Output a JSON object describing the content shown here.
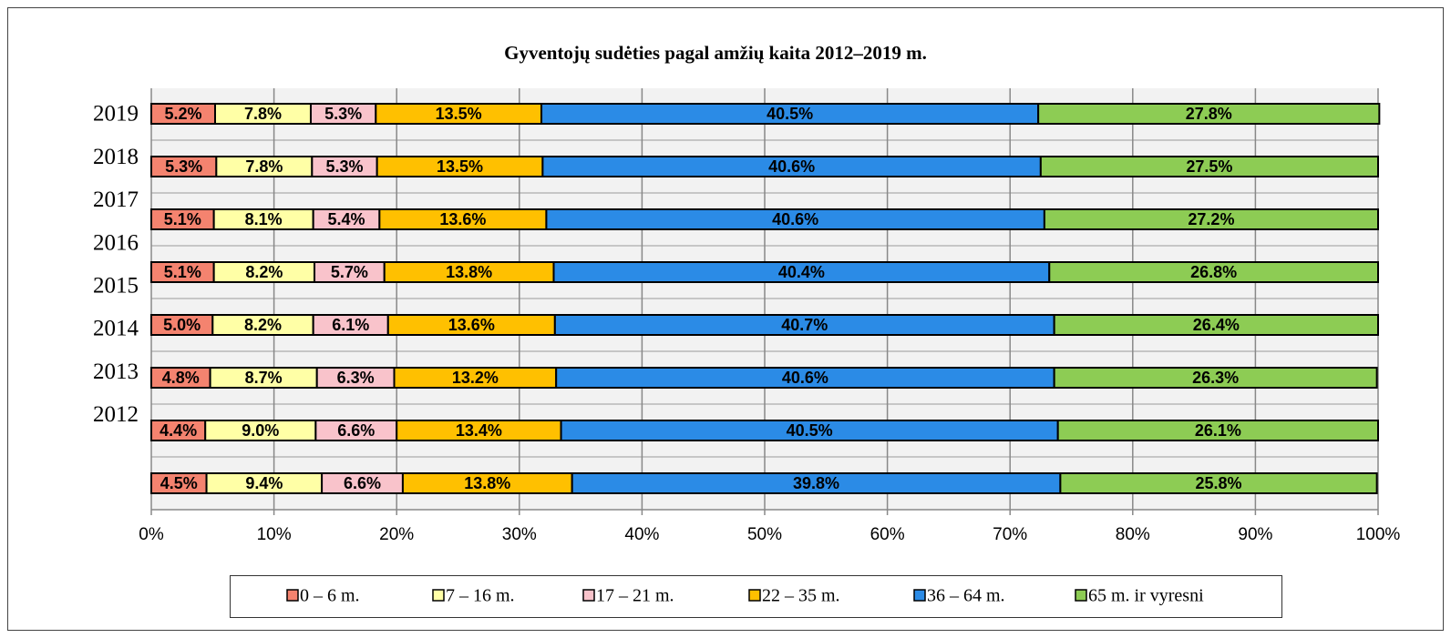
{
  "chart_data": {
    "type": "stacked_barh",
    "title": "Gyventojų sudėties pagal amžių kaita 2012–2019  m.",
    "categories": [
      "2019",
      "2018",
      "2017",
      "2016",
      "2015",
      "2014",
      "2013",
      "2012"
    ],
    "series": [
      {
        "name": "0 – 6 m.",
        "color": "#f4836f",
        "values": [
          5.2,
          5.3,
          5.1,
          5.1,
          5.0,
          4.8,
          4.4,
          4.5
        ],
        "value_labels": [
          "5.2%",
          "5.3%",
          "5.1%",
          "5.1%",
          "5.0%",
          "4.8%",
          "4.4%",
          "4.5%"
        ]
      },
      {
        "name": "7 – 16 m.",
        "color": "#ffffa6",
        "values": [
          7.8,
          7.8,
          8.1,
          8.2,
          8.2,
          8.7,
          9.0,
          9.4
        ],
        "value_labels": [
          "7.8%",
          "7.8%",
          "8.1%",
          "8.2%",
          "8.2%",
          "8.7%",
          "9.0%",
          "9.4%"
        ]
      },
      {
        "name": "17 – 21 m.",
        "color": "#f9c3cb",
        "values": [
          5.3,
          5.3,
          5.4,
          5.7,
          6.1,
          6.3,
          6.6,
          6.6
        ],
        "value_labels": [
          "5.3%",
          "5.3%",
          "5.4%",
          "5.7%",
          "6.1%",
          "6.3%",
          "6.6%",
          "6.6%"
        ]
      },
      {
        "name": "22 – 35 m.",
        "color": "#ffc000",
        "values": [
          13.5,
          13.5,
          13.6,
          13.8,
          13.6,
          13.2,
          13.4,
          13.8
        ],
        "value_labels": [
          "13.5%",
          "13.5%",
          "13.6%",
          "13.8%",
          "13.6%",
          "13.2%",
          "13.4%",
          "13.8%"
        ]
      },
      {
        "name": "36 – 64 m.",
        "color": "#2b8be6",
        "values": [
          40.5,
          40.6,
          40.6,
          40.4,
          40.7,
          40.6,
          40.5,
          39.8
        ],
        "value_labels": [
          "40.5%",
          "40.6%",
          "40.6%",
          "40.4%",
          "40.7%",
          "40.6%",
          "40.5%",
          "39.8%"
        ]
      },
      {
        "name": "65 m. ir vyresni",
        "color": "#8dcc54",
        "values": [
          27.8,
          27.5,
          27.2,
          26.8,
          26.4,
          26.3,
          26.1,
          25.8
        ],
        "value_labels": [
          "27.8%",
          "27.5%",
          "27.2%",
          "26.8%",
          "26.4%",
          "26.3%",
          "26.1%",
          "25.8%"
        ]
      }
    ],
    "xlim": [
      0,
      100
    ],
    "xticks": [
      {
        "value": 0,
        "label": "0%"
      },
      {
        "value": 10,
        "label": "10%"
      },
      {
        "value": 20,
        "label": "20%"
      },
      {
        "value": 30,
        "label": "30%"
      },
      {
        "value": 40,
        "label": "40%"
      },
      {
        "value": 50,
        "label": "50%"
      },
      {
        "value": 60,
        "label": "60%"
      },
      {
        "value": 70,
        "label": "70%"
      },
      {
        "value": 80,
        "label": "80%"
      },
      {
        "value": 90,
        "label": "90%"
      },
      {
        "value": 100,
        "label": "100%"
      }
    ],
    "grid": true,
    "legend": "bottom"
  }
}
